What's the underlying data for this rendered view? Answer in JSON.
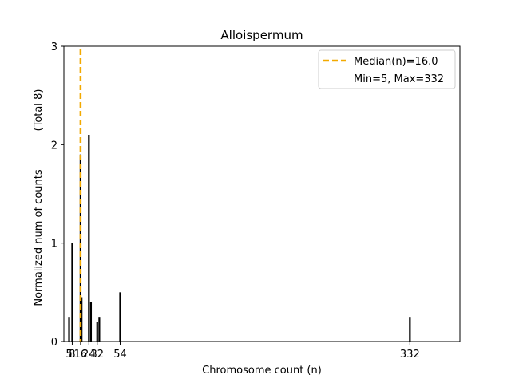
{
  "chart_data": {
    "type": "bar",
    "title": "Alloispermum",
    "xlabel": "Chromosome count (n)",
    "ylabel": "Normalized num of counts",
    "ylabel_note": "(Total 8)",
    "xlim": [
      0,
      380
    ],
    "ylim": [
      0,
      3
    ],
    "yticks": [
      0,
      1,
      2,
      3
    ],
    "xticks": [
      {
        "value": 5,
        "label": "5"
      },
      {
        "value": 8,
        "label": "8"
      },
      {
        "value": 16,
        "label": "16"
      },
      {
        "value": 24,
        "label": "24"
      },
      {
        "value": 32,
        "label": "32"
      },
      {
        "value": 54,
        "label": "54"
      },
      {
        "value": 332,
        "label": "332"
      }
    ],
    "tick_overlap_label": "5816243254",
    "bars": [
      {
        "x": 5,
        "value": 0.25
      },
      {
        "x": 8,
        "value": 1.0
      },
      {
        "x": 16,
        "value": 1.9
      },
      {
        "x": 17,
        "value": 0.45
      },
      {
        "x": 24,
        "value": 2.1
      },
      {
        "x": 26,
        "value": 0.4
      },
      {
        "x": 32,
        "value": 0.2
      },
      {
        "x": 34,
        "value": 0.25
      },
      {
        "x": 54,
        "value": 0.5
      },
      {
        "x": 332,
        "value": 0.25
      }
    ],
    "median_line": {
      "x": 16,
      "label": "Median(n)=16.0",
      "color": "#f2a900"
    },
    "minmax_label": "Min=5, Max=332",
    "legend_position": "top-right",
    "bar_color": "#000000"
  }
}
